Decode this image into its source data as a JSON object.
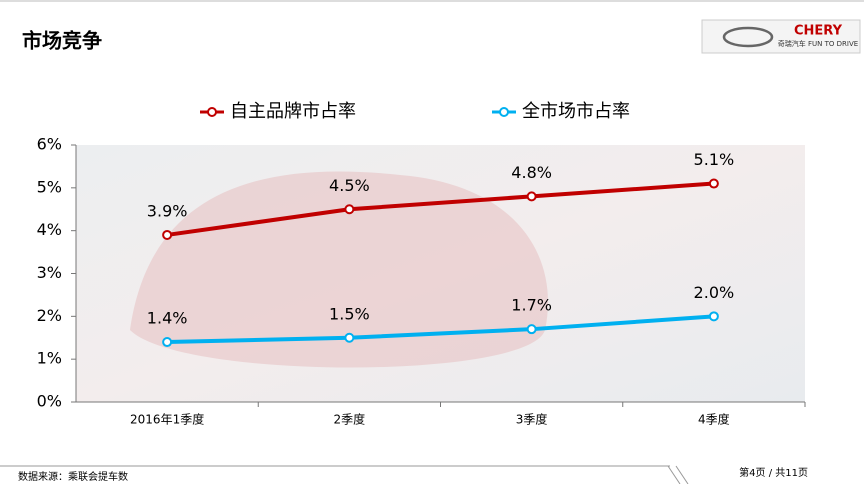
{
  "header": {
    "title": "市场竞争",
    "logo": "CHERY",
    "logo_sub": "奇瑞汽车 FUN TO DRIVE"
  },
  "chart_data": {
    "type": "line",
    "categories": [
      "2016年1季度",
      "2季度",
      "3季度",
      "4季度"
    ],
    "series": [
      {
        "name": "自主品牌市占率",
        "color": "#c00000",
        "values": [
          3.9,
          4.5,
          4.8,
          5.1
        ],
        "value_labels": [
          "3.9%",
          "4.5%",
          "4.8%",
          "5.1%"
        ]
      },
      {
        "name": "全市场市占率",
        "color": "#00b0f0",
        "values": [
          1.4,
          1.5,
          1.7,
          2.0
        ],
        "value_labels": [
          "1.4%",
          "1.5%",
          "1.7%",
          "2.0%"
        ]
      }
    ],
    "ylim": [
      0,
      6
    ],
    "yticks": [
      {
        "value": 0,
        "label": "0%"
      },
      {
        "value": 1,
        "label": "1%"
      },
      {
        "value": 2,
        "label": "2%"
      },
      {
        "value": 3,
        "label": "3%"
      },
      {
        "value": 4,
        "label": "4%"
      },
      {
        "value": 5,
        "label": "5%"
      },
      {
        "value": 6,
        "label": "6%"
      }
    ],
    "legend": "top"
  },
  "footer": {
    "source": "数据来源：乘联会提车数",
    "page": "第4页 / 共11页"
  }
}
